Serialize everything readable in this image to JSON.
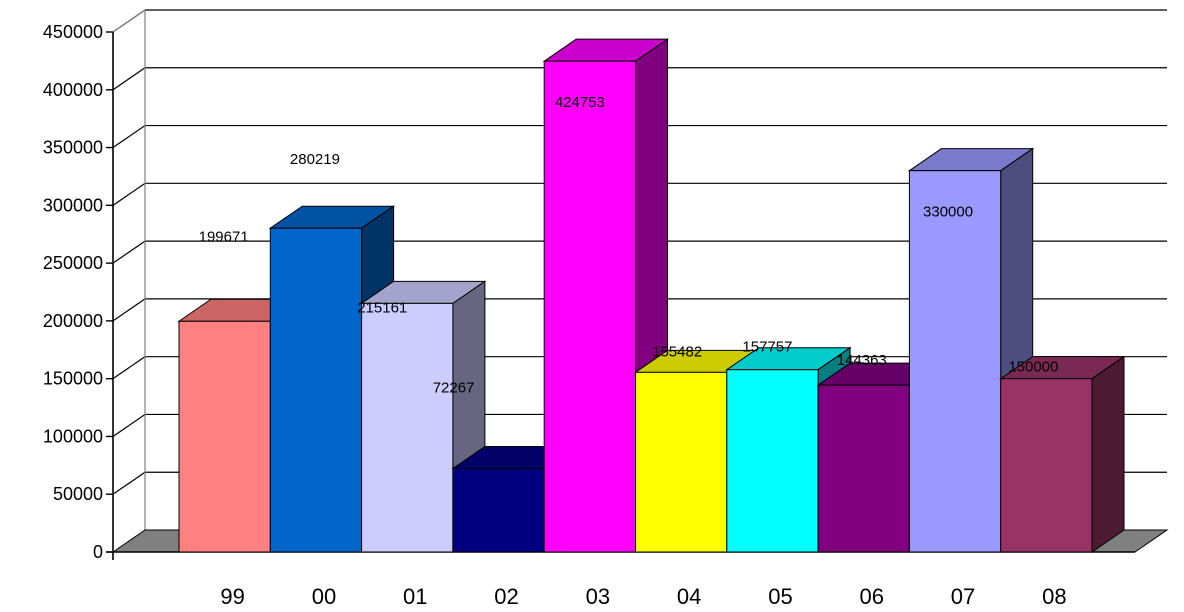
{
  "chart_data": {
    "type": "bar",
    "style": "3d-column",
    "title": "",
    "xlabel": "",
    "ylabel": "",
    "categories": [
      "99",
      "00",
      "01",
      "02",
      "03",
      "04",
      "05",
      "06",
      "07",
      "08"
    ],
    "values": [
      199671,
      280219,
      215161,
      72267,
      424753,
      155482,
      157757,
      144363,
      330000,
      150000
    ],
    "data_labels": [
      "199671",
      "280219",
      "215161",
      "72267",
      "424753",
      "155482",
      "157757",
      "144363",
      "330000",
      "150000"
    ],
    "ylim": [
      0,
      450000
    ],
    "yticks": [
      "0",
      "50000",
      "100000",
      "150000",
      "200000",
      "250000",
      "300000",
      "350000",
      "400000",
      "450000"
    ],
    "grid": true,
    "legend": "none",
    "colors": [
      "#FF8080",
      "#0066CC",
      "#CCCCFF",
      "#000080",
      "#FF00FF",
      "#FFFF00",
      "#00FFFF",
      "#800080",
      "#9999FF",
      "#993366"
    ]
  }
}
